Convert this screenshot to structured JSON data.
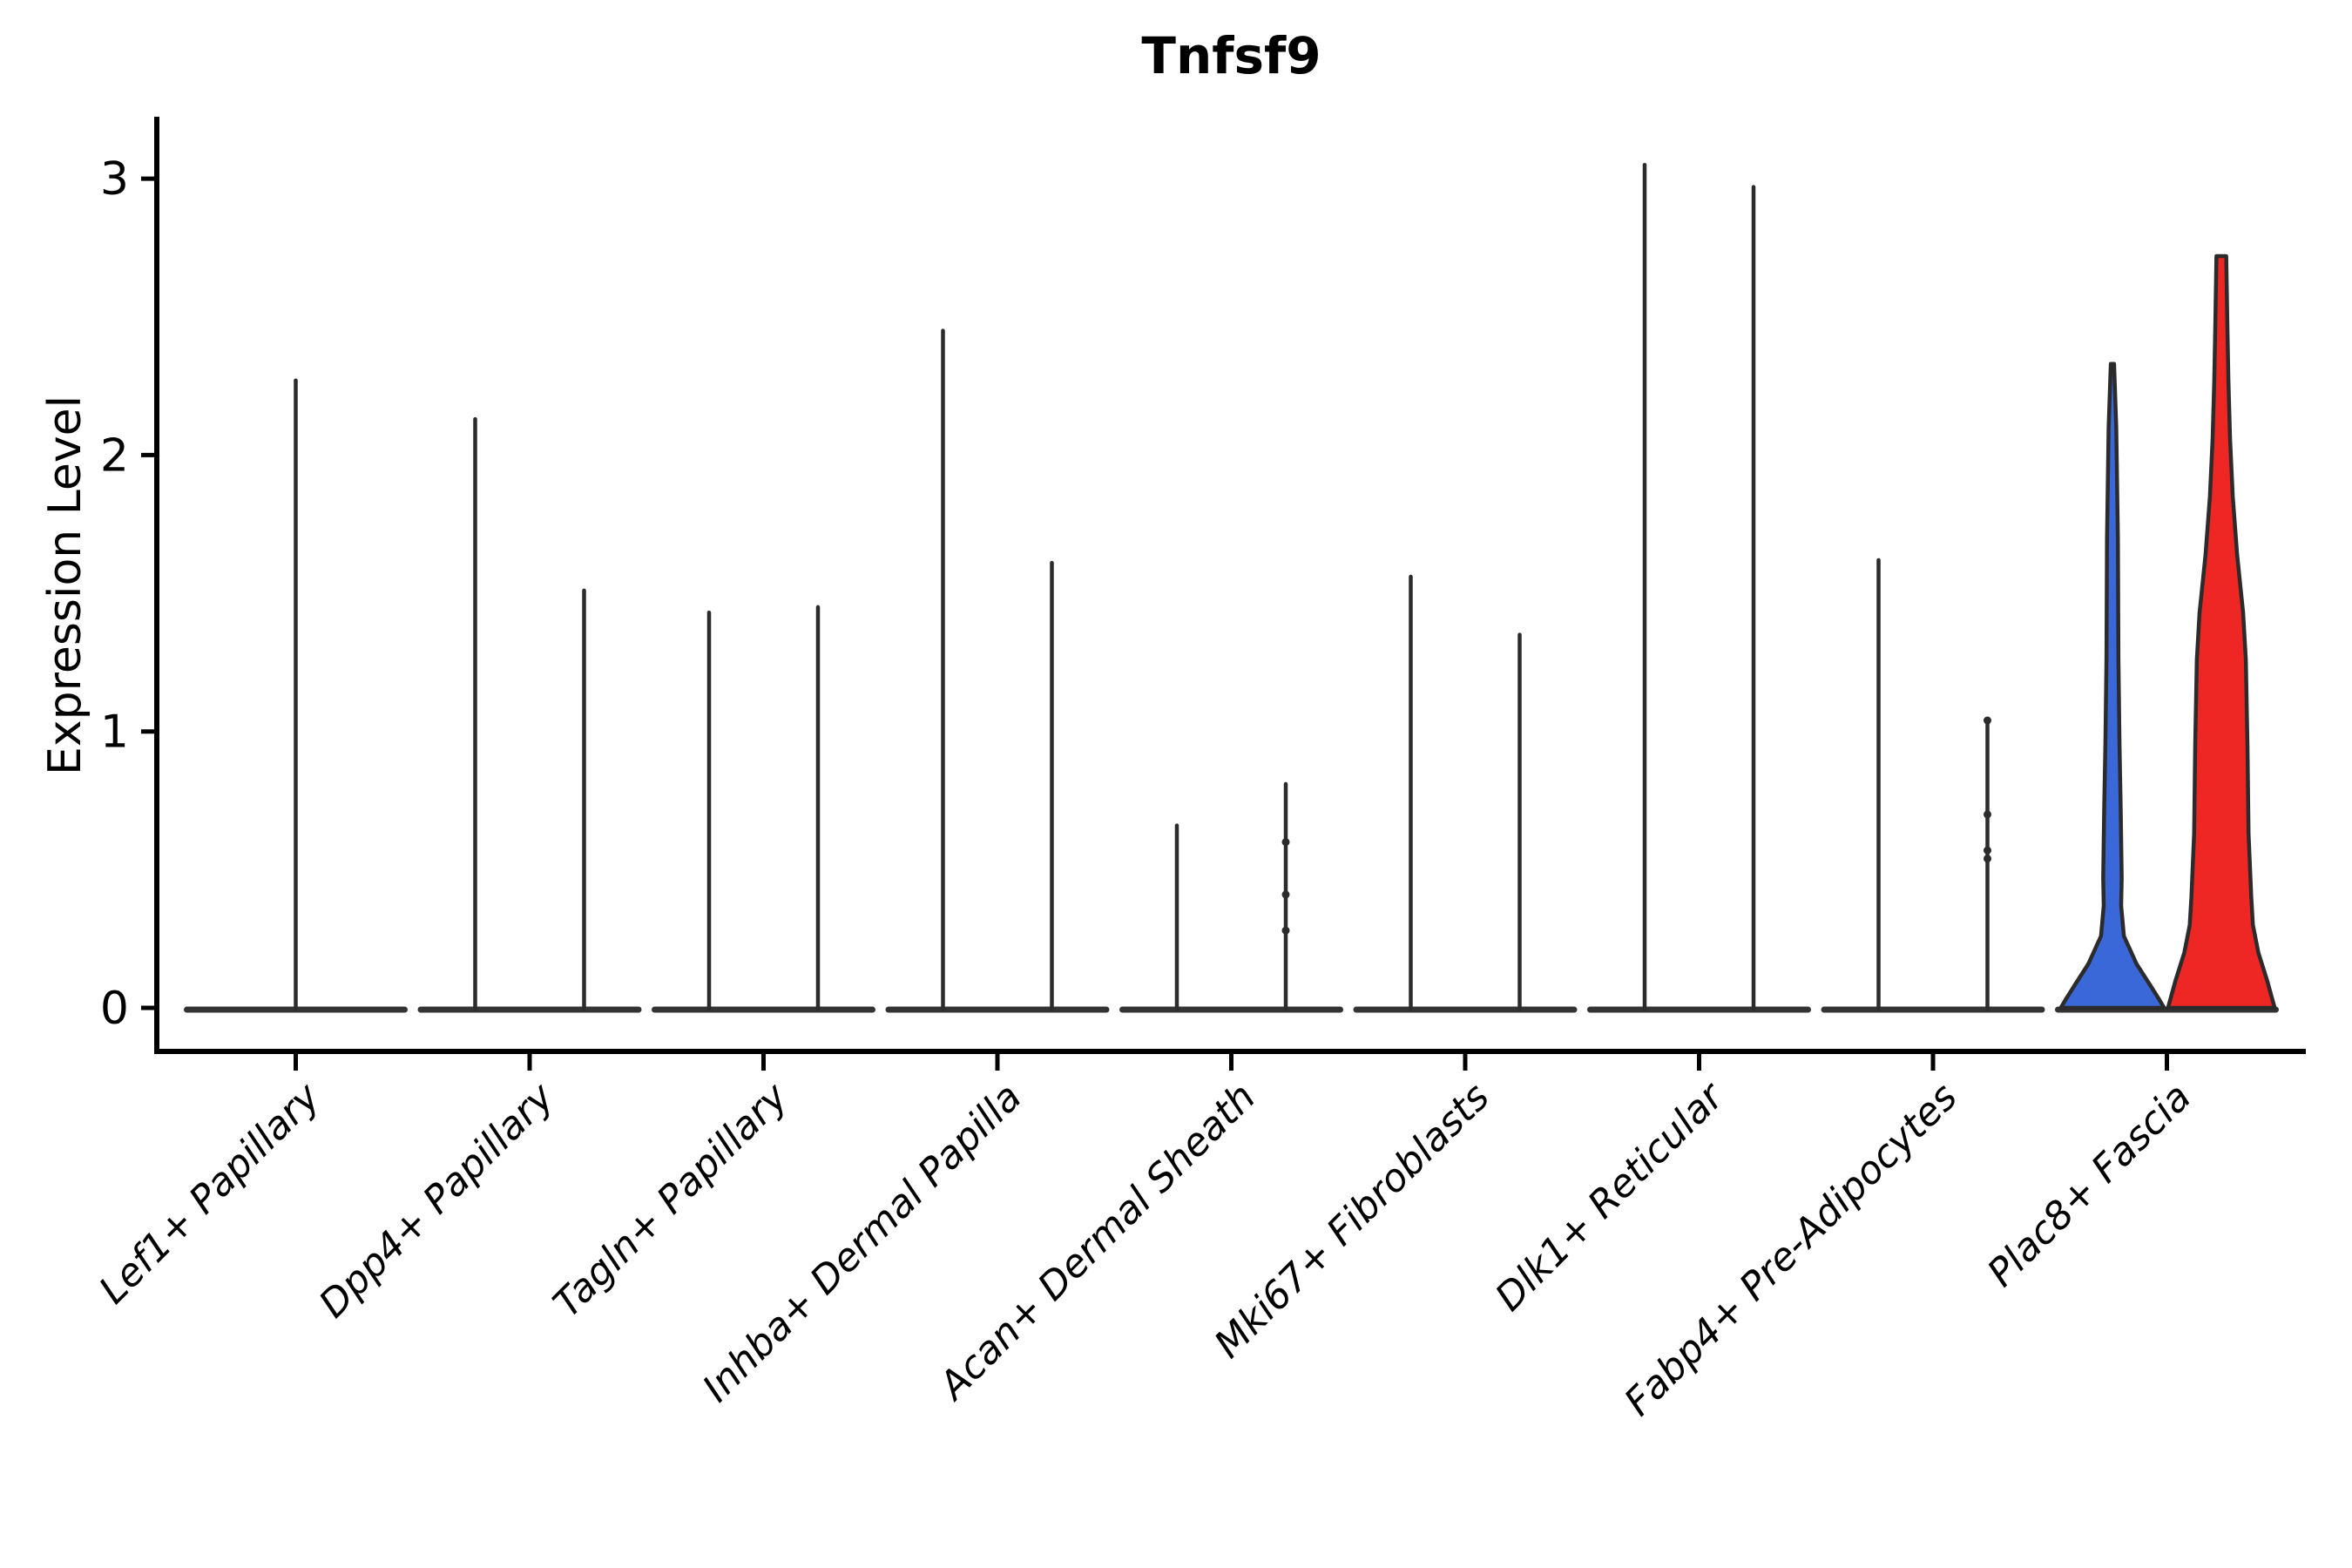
{
  "title": "Tnfsf9",
  "axes": {
    "ylabel": "Expression Level",
    "ytick_labels": [
      "0",
      "1",
      "2",
      "3"
    ]
  },
  "colors": {
    "violin_blue": "#3A68D8",
    "violin_red": "#EE2724",
    "outline": "#2B2B2B",
    "axis": "#000000",
    "background": "#FFFFFF"
  },
  "chart_data": {
    "type": "violin",
    "title": "Tnfsf9",
    "ylabel": "Expression Level",
    "ylim": [
      0,
      3.3
    ],
    "yticks": [
      0,
      1,
      2,
      3
    ],
    "grid": false,
    "legend": "none",
    "categories": [
      "Lef1+ Papillary",
      "Dpp4+ Papillary",
      "Tagln+ Papillary",
      "Inhba+ Dermal Papilla",
      "Acan+ Dermal Sheath",
      "Mki67+ Fibroblasts",
      "Dlk1+ Reticular",
      "Fabp4+ Pre-Adipocytes",
      "Plac8+ Fascia"
    ],
    "groups": [
      {
        "label": "Lef1+ Papillary",
        "violins": [
          {
            "side": "center",
            "width": "full",
            "max": 2.27,
            "fill": "#FFFFFF"
          }
        ]
      },
      {
        "label": "Dpp4+ Papillary",
        "violins": [
          {
            "side": "left",
            "max": 2.13,
            "fill": "#FFFFFF"
          },
          {
            "side": "right",
            "max": 1.51,
            "fill": "#FFFFFF"
          }
        ]
      },
      {
        "label": "Tagln+ Papillary",
        "violins": [
          {
            "side": "left",
            "max": 1.43,
            "fill": "#FFFFFF"
          },
          {
            "side": "right",
            "max": 1.45,
            "fill": "#FFFFFF"
          }
        ]
      },
      {
        "label": "Inhba+ Dermal Papilla",
        "violins": [
          {
            "side": "left",
            "max": 2.45,
            "fill": "#FFFFFF"
          },
          {
            "side": "right",
            "max": 1.61,
            "fill": "#FFFFFF"
          }
        ]
      },
      {
        "label": "Acan+ Dermal Sheath",
        "violins": [
          {
            "side": "left",
            "max": 0.66,
            "fill": "#FFFFFF"
          },
          {
            "side": "right",
            "max": 0.81,
            "fill": "#FFFFFF",
            "points": [
              0.6,
              0.41,
              0.28
            ]
          }
        ]
      },
      {
        "label": "Mki67+ Fibroblasts",
        "violins": [
          {
            "side": "left",
            "max": 1.56,
            "fill": "#FFFFFF"
          },
          {
            "side": "right",
            "max": 1.35,
            "fill": "#FFFFFF"
          }
        ]
      },
      {
        "label": "Dlk1+ Reticular",
        "violins": [
          {
            "side": "left",
            "max": 3.05,
            "fill": "#FFFFFF"
          },
          {
            "side": "right",
            "max": 2.97,
            "fill": "#FFFFFF"
          }
        ]
      },
      {
        "label": "Fabp4+ Pre-Adipocytes",
        "violins": [
          {
            "side": "left",
            "max": 1.62,
            "fill": "#FFFFFF"
          },
          {
            "side": "right",
            "max": 1.04,
            "fill": "#FFFFFF",
            "points": [
              1.04,
              0.7,
              0.57,
              0.54
            ]
          }
        ]
      },
      {
        "label": "Plac8+ Fascia",
        "violins": [
          {
            "side": "left",
            "max": 2.33,
            "fill": "#3A68D8",
            "profile": [
              [
                2.33,
                0.03
              ],
              [
                2.1,
                0.07
              ],
              [
                1.7,
                0.1
              ],
              [
                1.26,
                0.11
              ],
              [
                0.95,
                0.13
              ],
              [
                0.74,
                0.15
              ],
              [
                0.61,
                0.16
              ],
              [
                0.47,
                0.17
              ],
              [
                0.37,
                0.16
              ],
              [
                0.26,
                0.21
              ],
              [
                0.16,
                0.44
              ],
              [
                0.08,
                0.7
              ],
              [
                0.03,
                0.86
              ],
              [
                0.0,
                0.95
              ]
            ]
          },
          {
            "side": "right",
            "max": 2.72,
            "fill": "#EE2724",
            "profile": [
              [
                2.72,
                0.09
              ],
              [
                2.48,
                0.11
              ],
              [
                2.27,
                0.13
              ],
              [
                2.06,
                0.16
              ],
              [
                1.85,
                0.21
              ],
              [
                1.64,
                0.29
              ],
              [
                1.43,
                0.4
              ],
              [
                1.26,
                0.45
              ],
              [
                0.95,
                0.48
              ],
              [
                0.63,
                0.5
              ],
              [
                0.4,
                0.55
              ],
              [
                0.3,
                0.58
              ],
              [
                0.2,
                0.68
              ],
              [
                0.1,
                0.84
              ],
              [
                0.0,
                0.98
              ]
            ]
          }
        ]
      }
    ]
  }
}
